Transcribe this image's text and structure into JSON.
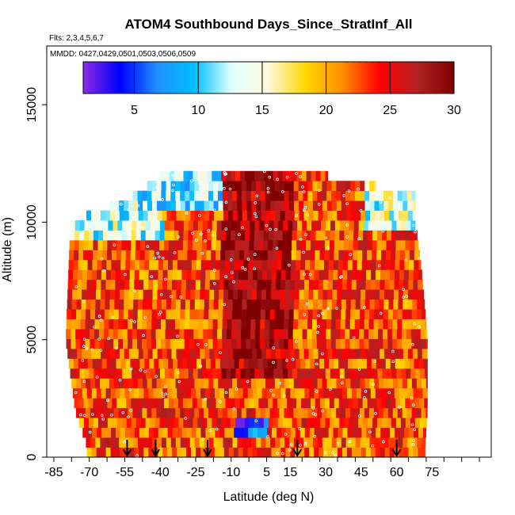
{
  "chart_data": {
    "type": "heatmap",
    "title": "ATOM4 Southbound Days_Since_StratInf_All",
    "flights_label": "Flts: 2,3,4,5,6,7",
    "mmdd_label": "MMDD: 0427,0429,0501,0503,0506,0509",
    "xlabel": "Latitude (deg N)",
    "ylabel": "Altitude (m)",
    "xlim": [
      -88,
      100
    ],
    "ylim": [
      0,
      17500
    ],
    "x_ticks": [
      -85,
      -70,
      -55,
      -40,
      -25,
      -10,
      5,
      15,
      30,
      45,
      60,
      75
    ],
    "x_tick_labels": [
      "-85",
      "-70",
      "-55",
      "-40",
      "-25",
      "-10",
      "5",
      "15",
      "30",
      "45",
      "60",
      "75"
    ],
    "y_ticks": [
      0,
      5000,
      10000,
      15000
    ],
    "y_tick_labels": [
      "0",
      "5000",
      "10000",
      "15000"
    ],
    "colorbar": {
      "min": 1,
      "max": 30,
      "ticks": [
        5,
        10,
        15,
        20,
        25,
        30
      ],
      "tick_labels": [
        "5",
        "10",
        "15",
        "20",
        "25",
        "30"
      ],
      "colors": [
        "#8a2be2",
        "#0000ff",
        "#1e90ff",
        "#00bfff",
        "#e0ffff",
        "#fff8dc",
        "#ffd700",
        "#ff8c00",
        "#ff0000",
        "#b22222",
        "#800000"
      ]
    },
    "layer_bounds": [
      {
        "alt": 500,
        "lat_min": -71,
        "lat_max": 72
      },
      {
        "alt": 2000,
        "lat_min": -76,
        "lat_max": 73
      },
      {
        "alt": 5000,
        "lat_min": -80,
        "lat_max": 73
      },
      {
        "alt": 7500,
        "lat_min": -79,
        "lat_max": 71
      },
      {
        "alt": 10000,
        "lat_min": -78,
        "lat_max": 68
      },
      {
        "alt": 11200,
        "lat_min": -50,
        "lat_max": 68
      },
      {
        "alt": 12300,
        "lat_min": -36,
        "lat_max": 15
      }
    ],
    "value_regions": [
      {
        "lat_range": [
          -85,
          -40
        ],
        "alt_range": [
          9000,
          11500
        ],
        "value": 13
      },
      {
        "lat_range": [
          -50,
          -15
        ],
        "alt_range": [
          10500,
          12500
        ],
        "value": 11
      },
      {
        "lat_range": [
          -15,
          15
        ],
        "alt_range": [
          3000,
          12000
        ],
        "value": 28
      },
      {
        "lat_range": [
          45,
          72
        ],
        "alt_range": [
          9500,
          11500
        ],
        "value": 14
      },
      {
        "lat_range": [
          -10,
          5
        ],
        "alt_range": [
          500,
          1400
        ],
        "value": 6
      }
    ],
    "background_value": 23,
    "flight_markers_lat": [
      -54,
      -42,
      -20,
      18,
      60
    ]
  }
}
